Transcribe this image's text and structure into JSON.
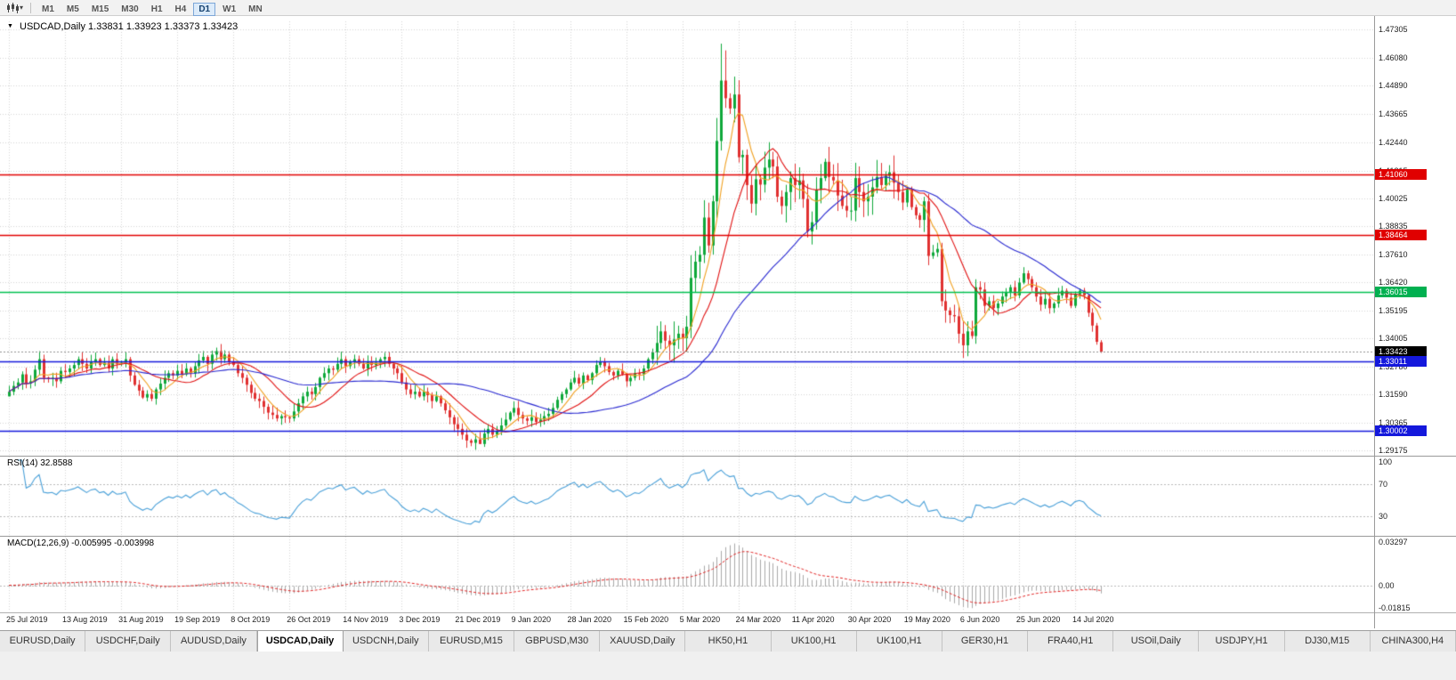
{
  "header": {
    "title": "USDCAD,Daily",
    "ohlc": "1.33831 1.33923 1.33373 1.33423"
  },
  "toolbar": {
    "timeframes": [
      "M1",
      "M5",
      "M15",
      "M30",
      "H1",
      "H4",
      "D1",
      "W1",
      "MN"
    ],
    "active_timeframe": "D1"
  },
  "chart": {
    "price_axis_labels": [
      "1.47305",
      "1.46080",
      "1.44890",
      "1.43665",
      "1.42440",
      "1.41215",
      "1.40025",
      "1.38835",
      "1.37610",
      "1.36420",
      "1.35195",
      "1.34005",
      "1.32780",
      "1.31590",
      "1.30365",
      "1.29175"
    ],
    "price_tags": [
      {
        "text": "1.41060",
        "value": 1.4106,
        "bg": "#e00000"
      },
      {
        "text": "1.38464",
        "value": 1.38464,
        "bg": "#e00000"
      },
      {
        "text": "1.36015",
        "value": 1.36015,
        "bg": "#00b050"
      },
      {
        "text": "1.33423",
        "value": 1.33423,
        "bg": "#000000"
      },
      {
        "text": "1.33011",
        "value": 1.33011,
        "bg": "#1418dc"
      },
      {
        "text": "1.30002",
        "value": 1.30002,
        "bg": "#1418dc"
      }
    ],
    "date_labels": [
      "25 Jul 2019",
      "13 Aug 2019",
      "31 Aug 2019",
      "19 Sep 2019",
      "8 Oct 2019",
      "26 Oct 2019",
      "14 Nov 2019",
      "3 Dec 2019",
      "21 Dec 2019",
      "9 Jan 2020",
      "28 Jan 2020",
      "15 Feb 2020",
      "5 Mar 2020",
      "24 Mar 2020",
      "11 Apr 2020",
      "30 Apr 2020",
      "19 May 2020",
      "6 Jun 2020",
      "25 Jun 2020",
      "14 Jul 2020"
    ]
  },
  "indicators": {
    "rsi": {
      "label": "RSI(14) 32.8588",
      "current": 32.8588,
      "axis": [
        {
          "text": "100",
          "value": 100
        },
        {
          "text": "70",
          "value": 70
        },
        {
          "text": "30",
          "value": 30
        }
      ]
    },
    "macd": {
      "label": "MACD(12,26,9) -0.005995 -0.003998",
      "current": -0.005995,
      "signal_current": -0.003998,
      "axis": [
        {
          "text": "0.03297",
          "value": 0.03297
        },
        {
          "text": "0.00",
          "value": 0
        },
        {
          "text": "-0.01815",
          "value": -0.01815
        }
      ]
    }
  },
  "tabs": {
    "active_index": 3,
    "items": [
      "EURUSD,Daily",
      "USDCHF,Daily",
      "AUDUSD,Daily",
      "USDCAD,Daily",
      "USDCNH,Daily",
      "EURUSD,M15",
      "GBPUSD,M30",
      "XAUUSD,Daily",
      "HK50,H1",
      "UK100,H1",
      "UK100,H1",
      "GER30,H1",
      "FRA40,H1",
      "USOil,Daily",
      "USDJPY,H1",
      "DJ30,M15",
      "CHINA300,H4"
    ]
  },
  "chart_data": {
    "type": "candlestick",
    "symbol": "USDCAD",
    "timeframe": "Daily",
    "last_ohlc": {
      "open": 1.33831,
      "high": 1.33923,
      "low": 1.33373,
      "close": 1.33423
    },
    "current_price": 1.33423,
    "x_tick_step": 13,
    "colors": {
      "candle_up": "#0ea83a",
      "candle_down": "#e03030",
      "grid": "#d4d4d4",
      "rsi_line": "#4aa0d8",
      "macd_hist": "#a8a8a8",
      "macd_signal": "#e02020",
      "level_dash": "#b8b8b8",
      "current_price_line": "#909090"
    },
    "hlines": [
      {
        "value": 1.4106,
        "color": "#e00000"
      },
      {
        "value": 1.38464,
        "color": "#e00000"
      },
      {
        "value": 1.36015,
        "color": "#00c050"
      },
      {
        "value": 1.33011,
        "color": "#1418dc"
      },
      {
        "value": 1.30002,
        "color": "#1418dc"
      }
    ],
    "moving_averages": [
      {
        "type": "SMA",
        "period": 6,
        "color": "#f0a020"
      },
      {
        "type": "SMA",
        "period": 14,
        "color": "#e01010"
      },
      {
        "type": "SMA",
        "period": 40,
        "color": "#2828d0"
      }
    ],
    "rsi_period": 14,
    "macd_params": [
      12,
      26,
      9
    ],
    "closes": [
      1.317,
      1.3195,
      1.321,
      1.3245,
      1.3205,
      1.3215,
      1.3265,
      1.331,
      1.323,
      1.3225,
      1.323,
      1.3215,
      1.326,
      1.3255,
      1.327,
      1.3285,
      1.331,
      1.329,
      1.327,
      1.33,
      1.331,
      1.3285,
      1.3295,
      1.327,
      1.331,
      1.329,
      1.3295,
      1.331,
      1.324,
      1.32,
      1.3175,
      1.3145,
      1.316,
      1.314,
      1.318,
      1.3205,
      1.323,
      1.325,
      1.324,
      1.326,
      1.3245,
      1.327,
      1.325,
      1.328,
      1.3305,
      1.332,
      1.329,
      1.333,
      1.3345,
      1.331,
      1.333,
      1.33,
      1.3285,
      1.325,
      1.323,
      1.32,
      1.3165,
      1.314,
      1.313,
      1.3105,
      1.308,
      1.307,
      1.3055,
      1.3065,
      1.306,
      1.3055,
      1.3085,
      1.312,
      1.315,
      1.317,
      1.316,
      1.319,
      1.323,
      1.325,
      1.327,
      1.3265,
      1.329,
      1.331,
      1.328,
      1.33,
      1.331,
      1.329,
      1.327,
      1.33,
      1.3285,
      1.3295,
      1.331,
      1.332,
      1.329,
      1.327,
      1.325,
      1.321,
      1.318,
      1.316,
      1.317,
      1.315,
      1.317,
      1.3155,
      1.313,
      1.315,
      1.312,
      1.309,
      1.306,
      1.303,
      1.301,
      1.2985,
      1.296,
      1.295,
      1.2965,
      1.2945,
      1.299,
      1.301,
      1.2985,
      1.3,
      1.3025,
      1.305,
      1.308,
      1.31,
      1.307,
      1.3055,
      1.3045,
      1.306,
      1.304,
      1.305,
      1.3065,
      1.3075,
      1.31,
      1.3135,
      1.316,
      1.318,
      1.321,
      1.323,
      1.3205,
      1.324,
      1.322,
      1.325,
      1.3285,
      1.33,
      1.328,
      1.3255,
      1.324,
      1.326,
      1.3245,
      1.3215,
      1.323,
      1.325,
      1.3245,
      1.327,
      1.331,
      1.334,
      1.338,
      1.343,
      1.339,
      1.337,
      1.3395,
      1.342,
      1.34,
      1.345,
      1.366,
      1.373,
      1.376,
      1.392,
      1.38,
      1.399,
      1.425,
      1.451,
      1.4434,
      1.439,
      1.445,
      1.418,
      1.419,
      1.406,
      1.398,
      1.4085,
      1.4062,
      1.4135,
      1.417,
      1.414,
      1.401,
      1.397,
      1.403,
      1.409,
      1.406,
      1.408,
      1.4,
      1.386,
      1.39,
      1.404,
      1.409,
      1.416,
      1.4095,
      1.408,
      1.4015,
      1.397,
      1.395,
      1.395,
      1.409,
      1.403,
      1.399,
      1.401,
      1.405,
      1.4095,
      1.406,
      1.41,
      1.4115,
      1.407,
      1.403,
      1.3985,
      1.404,
      1.3965,
      1.393,
      1.391,
      1.399,
      1.3755,
      1.377,
      1.3785,
      1.356,
      1.352,
      1.35,
      1.3495,
      1.342,
      1.337,
      1.343,
      1.341,
      1.362,
      1.361,
      1.354,
      1.356,
      1.353,
      1.355,
      1.358,
      1.36,
      1.362,
      1.3585,
      1.364,
      1.368,
      1.3655,
      1.362,
      1.358,
      1.3545,
      1.357,
      1.353,
      1.355,
      1.3585,
      1.3605,
      1.3575,
      1.354,
      1.359,
      1.3605,
      1.3585,
      1.351,
      1.3455,
      1.3385,
      1.33423
    ],
    "overrides": {
      "0": {
        "o": 1.315
      },
      "7": {
        "h": 1.3345
      },
      "48": {
        "h": 1.336
      },
      "109": {
        "l": 1.2952
      },
      "158": {
        "h": 1.3758
      },
      "161": {
        "h": 1.3995
      },
      "164": {
        "h": 1.4349
      },
      "165": {
        "h": 1.4669
      },
      "166": {
        "h": 1.464
      },
      "213": {
        "l": 1.3715
      },
      "221": {
        "l": 1.3316
      },
      "253": {
        "o": 1.33831,
        "h": 1.33923,
        "l": 1.33373
      }
    }
  }
}
